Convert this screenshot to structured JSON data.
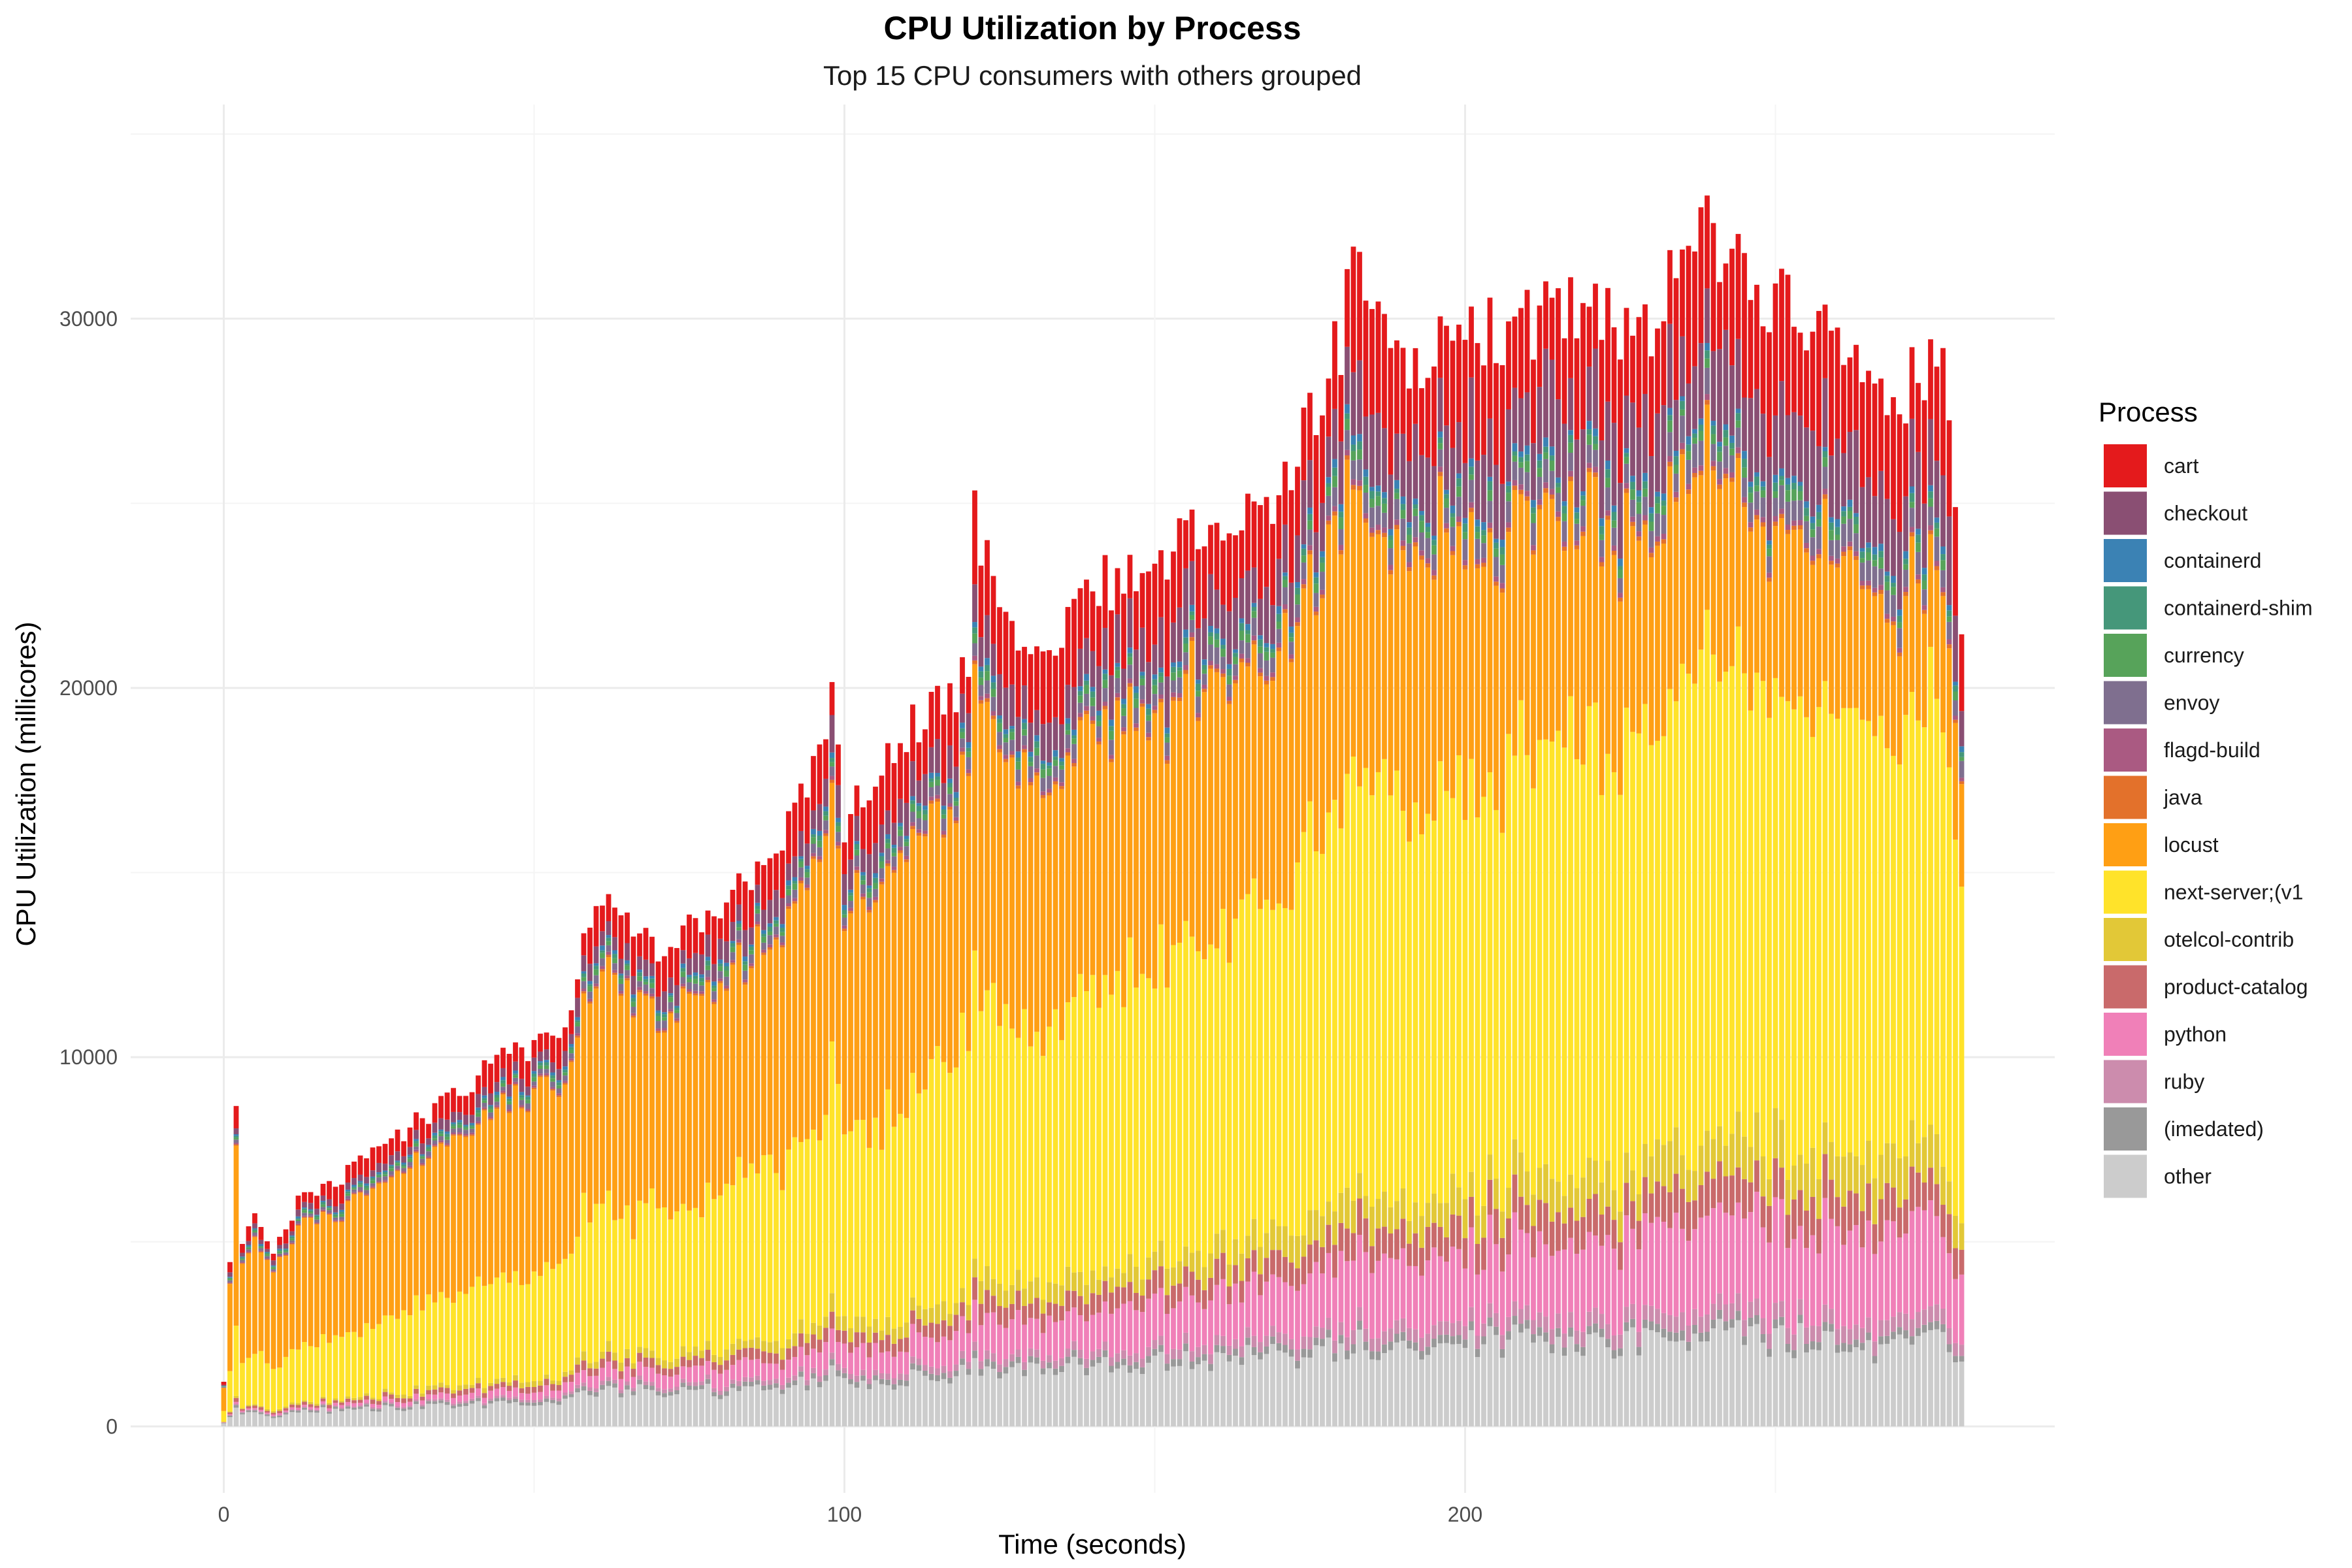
{
  "chart_data": {
    "type": "bar",
    "stacked": true,
    "title": "CPU Utilization by Process",
    "subtitle": "Top 15 CPU consumers with others grouped",
    "xlabel": "Time (seconds)",
    "ylabel": "CPU Utilization (millicores)",
    "xlim": [
      -15,
      295
    ],
    "ylim": [
      -1800,
      35800
    ],
    "x_ticks": [
      0,
      100,
      200
    ],
    "y_ticks": [
      0,
      10000,
      20000,
      30000
    ],
    "grid": true,
    "legend_title": "Process",
    "legend_position": "right",
    "x_range": [
      0,
      280
    ],
    "stack_order": [
      "other",
      "(imedated)",
      "ruby",
      "python",
      "product-catalog",
      "otelcol-contrib",
      "next-server;(v1",
      "locust",
      "java",
      "flagd-build",
      "envoy",
      "currency",
      "containerd-shim",
      "containerd",
      "checkout",
      "cart"
    ],
    "series": [
      {
        "name": "cart",
        "color": "#e41a1c"
      },
      {
        "name": "checkout",
        "color": "#8a4f73"
      },
      {
        "name": "containerd",
        "color": "#3b82b4"
      },
      {
        "name": "containerd-shim",
        "color": "#45977a"
      },
      {
        "name": "currency",
        "color": "#57a35a"
      },
      {
        "name": "envoy",
        "color": "#7f6f8f"
      },
      {
        "name": "flagd-build",
        "color": "#aa5a82"
      },
      {
        "name": "java",
        "color": "#e3712b"
      },
      {
        "name": "locust",
        "color": "#ff9f14"
      },
      {
        "name": "next-server;(v1",
        "color": "#ffe32a"
      },
      {
        "name": "otelcol-contrib",
        "color": "#e2c837"
      },
      {
        "name": "product-catalog",
        "color": "#c96a6b"
      },
      {
        "name": "python",
        "color": "#f080b8"
      },
      {
        "name": "ruby",
        "color": "#cc8cad"
      },
      {
        "name": "(imedated)",
        "color": "#999999"
      },
      {
        "name": "other",
        "color": "#cccccc"
      }
    ],
    "totals_keyframes": [
      [
        0,
        1300
      ],
      [
        1,
        4700
      ],
      [
        2,
        8900
      ],
      [
        3,
        5100
      ],
      [
        5,
        6000
      ],
      [
        8,
        5000
      ],
      [
        12,
        6300
      ],
      [
        20,
        7100
      ],
      [
        30,
        8400
      ],
      [
        45,
        10300
      ],
      [
        55,
        11000
      ],
      [
        60,
        15000
      ],
      [
        70,
        13500
      ],
      [
        80,
        14500
      ],
      [
        90,
        16300
      ],
      [
        98,
        20300
      ],
      [
        100,
        17000
      ],
      [
        110,
        19500
      ],
      [
        120,
        21000
      ],
      [
        121,
        26800
      ],
      [
        122,
        24400
      ],
      [
        130,
        21500
      ],
      [
        140,
        23500
      ],
      [
        150,
        24200
      ],
      [
        160,
        25500
      ],
      [
        170,
        26000
      ],
      [
        175,
        28000
      ],
      [
        180,
        30500
      ],
      [
        182,
        32800
      ],
      [
        190,
        30000
      ],
      [
        200,
        30500
      ],
      [
        210,
        31000
      ],
      [
        220,
        31500
      ],
      [
        230,
        30500
      ],
      [
        237,
        34100
      ],
      [
        245,
        32500
      ],
      [
        250,
        31500
      ],
      [
        260,
        30500
      ],
      [
        270,
        29000
      ],
      [
        275,
        29800
      ],
      [
        278,
        29000
      ],
      [
        279,
        26000
      ],
      [
        280,
        22200
      ]
    ]
  }
}
